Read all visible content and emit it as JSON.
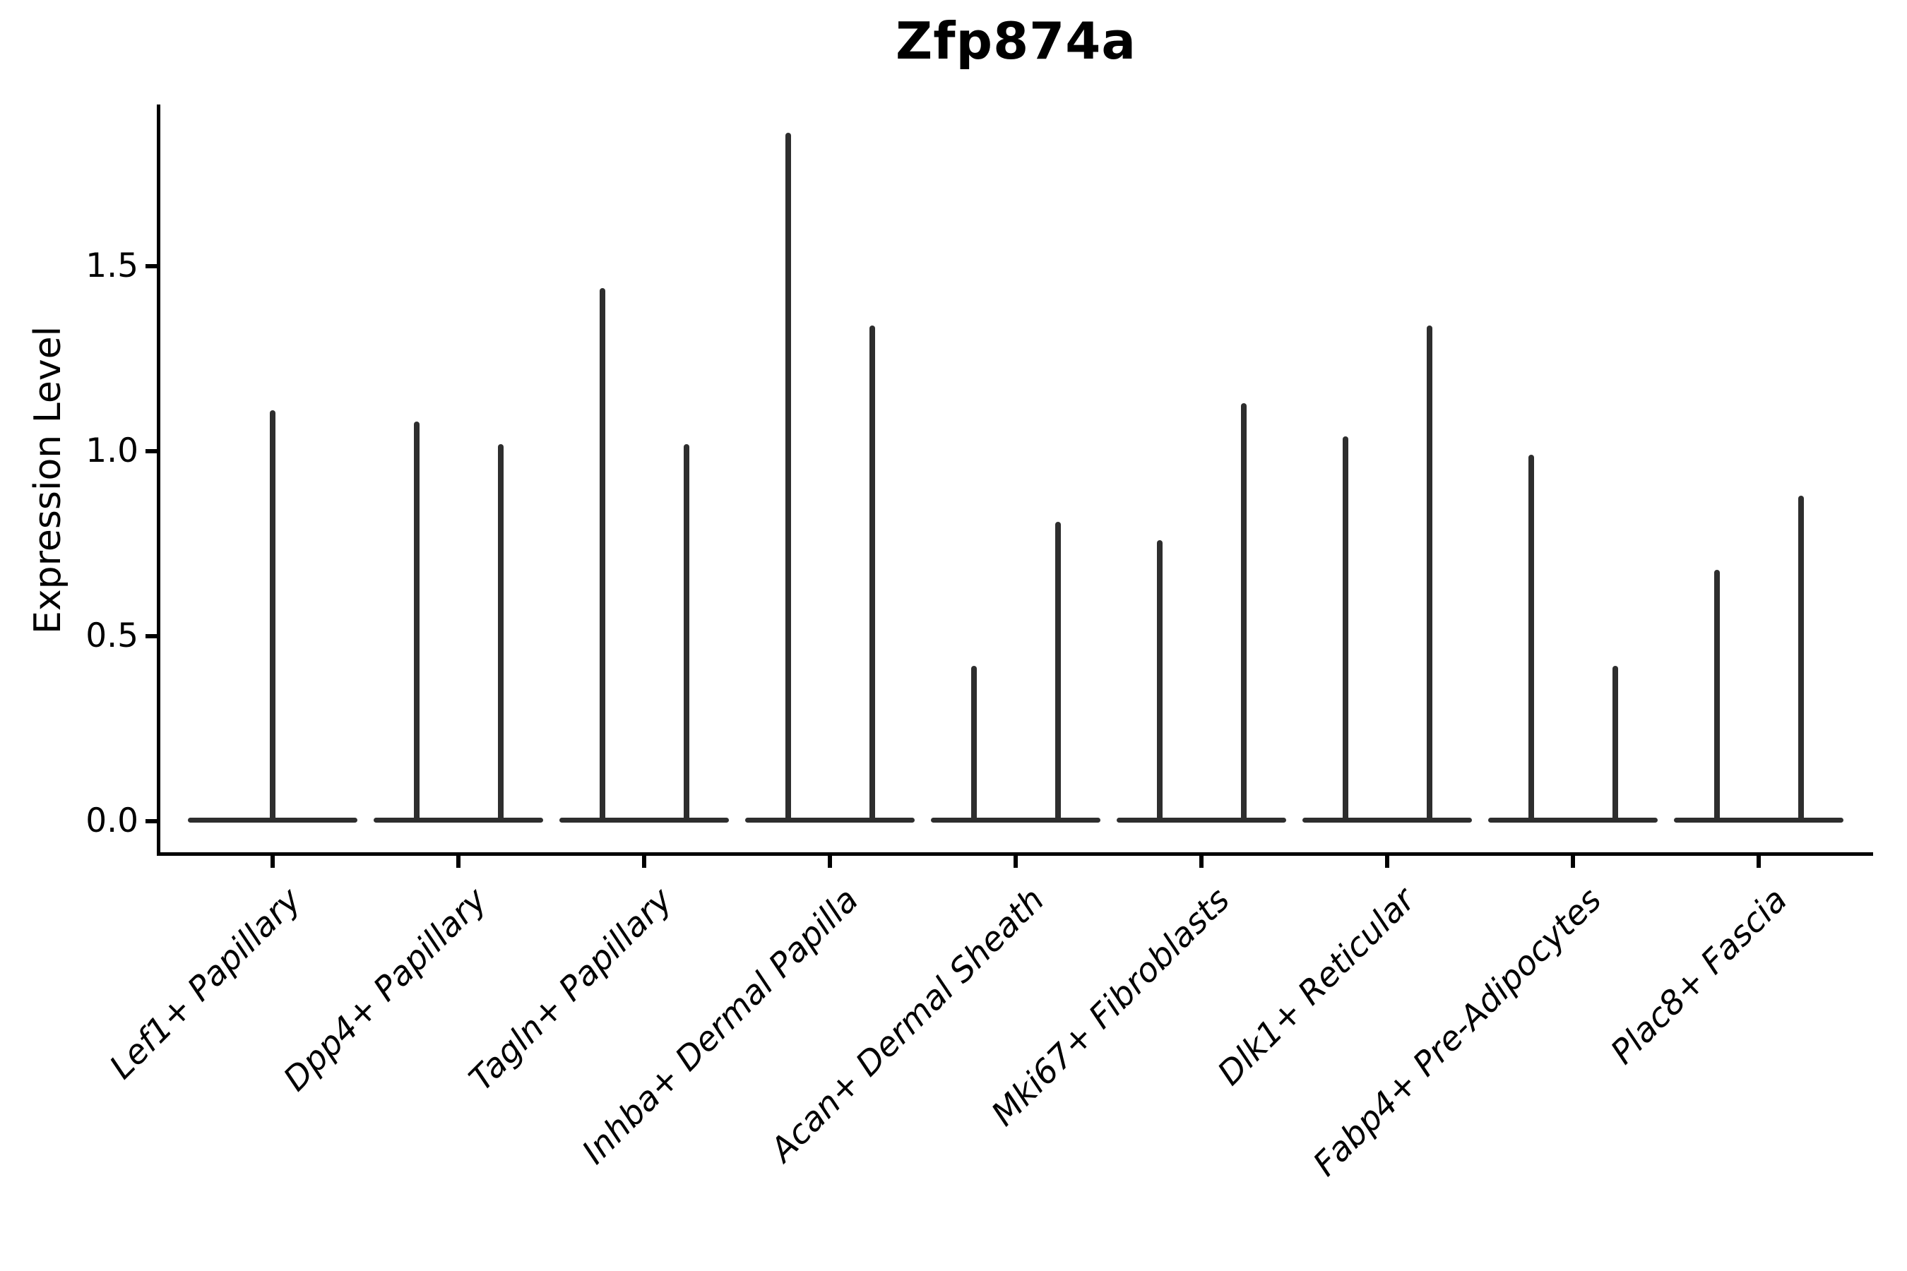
{
  "chart_data": {
    "type": "violin",
    "title": "Zfp874a",
    "ylabel": "Expression Level",
    "xlabel": "",
    "yticks": [
      "0.0",
      "0.5",
      "1.0",
      "1.5"
    ],
    "ytick_values": [
      0.0,
      0.5,
      1.0,
      1.5
    ],
    "ylim": [
      -0.09,
      1.94
    ],
    "grid": false,
    "legend_position": "none",
    "distribution_note": "sparse single-cell expression: each violin is a wide flat base at 0 with a thin central spike reaching its maximum value",
    "categories": [
      "Lef1+ Papillary",
      "Dpp4+ Papillary",
      "Tagln+ Papillary",
      "Inhba+ Dermal Papilla",
      "Acan+ Dermal Sheath",
      "Mki67+ Fibroblasts",
      "Dlk1+ Reticular",
      "Fabp4+ Pre-Adipocytes",
      "Plac8+ Fascia"
    ],
    "violins": [
      {
        "category": "Lef1+ Papillary",
        "spike_maxima": [
          1.11
        ]
      },
      {
        "category": "Dpp4+ Papillary",
        "spike_maxima": [
          1.08,
          1.02
        ]
      },
      {
        "category": "Tagln+ Papillary",
        "spike_maxima": [
          1.44,
          1.02
        ]
      },
      {
        "category": "Inhba+ Dermal Papilla",
        "spike_maxima": [
          1.86,
          1.34
        ]
      },
      {
        "category": "Acan+ Dermal Sheath",
        "spike_maxima": [
          0.42,
          0.81
        ]
      },
      {
        "category": "Mki67+ Fibroblasts",
        "spike_maxima": [
          0.76,
          1.13
        ]
      },
      {
        "category": "Dlk1+ Reticular",
        "spike_maxima": [
          1.04,
          1.34
        ]
      },
      {
        "category": "Fabp4+ Pre-Adipocytes",
        "spike_maxima": [
          0.99,
          0.42
        ]
      },
      {
        "category": "Plac8+ Fascia",
        "spike_maxima": [
          0.68,
          0.88
        ]
      }
    ],
    "colors": {
      "violin_ink": "#2e2e2e",
      "axis": "#000000",
      "text": "#000000",
      "background": "#ffffff"
    }
  }
}
